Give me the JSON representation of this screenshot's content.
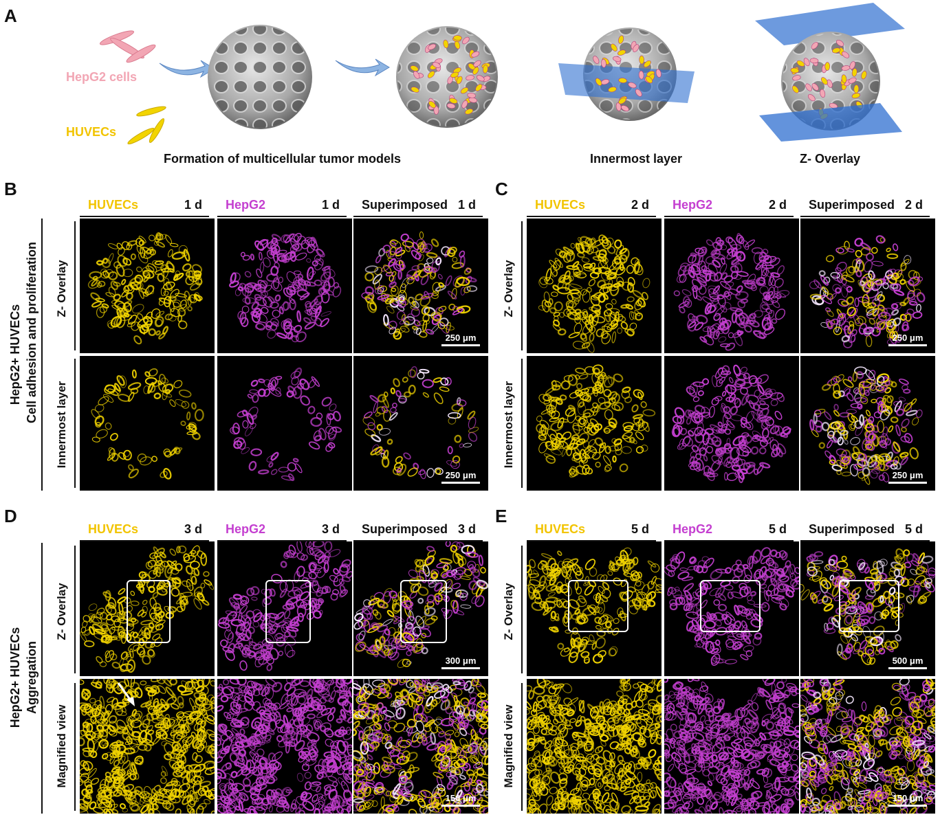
{
  "panel_letters": {
    "A": "A",
    "B": "B",
    "C": "C",
    "D": "D",
    "E": "E"
  },
  "panel_a": {
    "cell_labels": {
      "hepg2": "HepG2 cells",
      "huvecs": "HUVECs"
    },
    "captions": {
      "formation": "Formation of multicellular tumor models",
      "innermost": "Innermost layer",
      "zoverlay": "Z- Overlay"
    }
  },
  "colors": {
    "huvec_yellow": "#f2d400",
    "hepg2_magenta": "#c43fd0",
    "hepg2_pink": "#f2a6b4",
    "plane_blue": "#2f6fd0"
  },
  "panels": {
    "B": {
      "sidebar": [
        "HepG2+ HUVECs",
        "Cell adhesion and proliferation"
      ],
      "columns": [
        {
          "name": "HUVECs",
          "day": "1 d"
        },
        {
          "name": "HepG2",
          "day": "1 d"
        },
        {
          "name": "Superimposed",
          "day": "1 d"
        }
      ],
      "rows": [
        "Z- Overlay",
        "Innermost layer"
      ],
      "scales": [
        "250 μm",
        "250 μm"
      ]
    },
    "C": {
      "columns": [
        {
          "name": "HUVECs",
          "day": "2 d"
        },
        {
          "name": "HepG2",
          "day": "2 d"
        },
        {
          "name": "Superimposed",
          "day": "2 d"
        }
      ],
      "rows": [
        "Z- Overlay",
        "Innermost layer"
      ],
      "scales": [
        "250 μm",
        "250 μm"
      ]
    },
    "D": {
      "sidebar": [
        "HepG2+ HUVECs",
        "Aggregation"
      ],
      "columns": [
        {
          "name": "HUVECs",
          "day": "3 d"
        },
        {
          "name": "HepG2",
          "day": "3 d"
        },
        {
          "name": "Superimposed",
          "day": "3 d"
        }
      ],
      "rows": [
        "Z- Overlay",
        "Magnified view"
      ],
      "scales": [
        "300 μm",
        "150 μm"
      ]
    },
    "E": {
      "columns": [
        {
          "name": "HUVECs",
          "day": "5 d"
        },
        {
          "name": "HepG2",
          "day": "5 d"
        },
        {
          "name": "Superimposed",
          "day": "5 d"
        }
      ],
      "rows": [
        "Z- Overlay",
        "Magnified view"
      ],
      "scales": [
        "500 μm",
        "150 μm"
      ]
    }
  }
}
